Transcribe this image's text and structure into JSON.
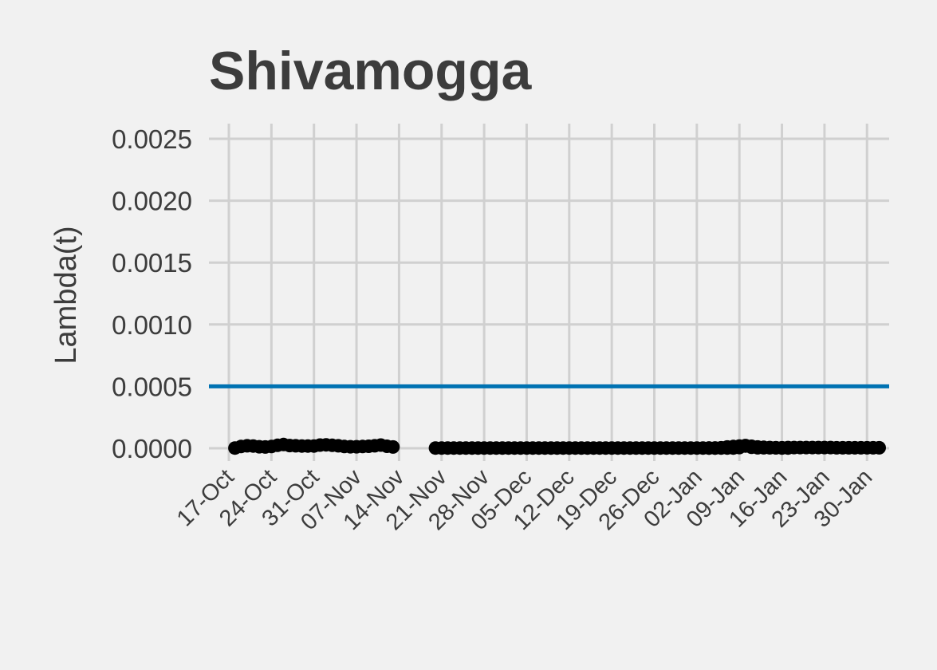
{
  "chart_data": {
    "type": "line",
    "title": "Shivamogga",
    "xlabel": "",
    "ylabel": "Lambda(t)",
    "grid": true,
    "x_ticks": [
      "17-Oct",
      "24-Oct",
      "31-Oct",
      "07-Nov",
      "14-Nov",
      "21-Nov",
      "28-Nov",
      "05-Dec",
      "12-Dec",
      "19-Dec",
      "26-Dec",
      "02-Jan",
      "09-Jan",
      "16-Jan",
      "23-Jan",
      "30-Jan"
    ],
    "y_ticks": [
      "0.0000",
      "0.0005",
      "0.0010",
      "0.0015",
      "0.0020",
      "0.0025"
    ],
    "ylim": [
      -3e-05,
      0.00026
    ],
    "reference_line": {
      "y": 0.0005,
      "color": "#0072b2"
    },
    "series": [
      {
        "color": "#000000",
        "segments": [
          {
            "start": "2020-10-18",
            "values": [
              2e-06,
              1.4e-05,
              2e-05,
              1.8e-05,
              1.2e-05,
              1e-05,
              1.4e-05,
              2.4e-05,
              3e-05,
              2.2e-05,
              2e-05,
              1.8e-05,
              1.8e-05,
              1.8e-05,
              2.6e-05,
              2.8e-05,
              2.4e-05,
              2e-05,
              1.4e-05,
              1.2e-05,
              1.2e-05,
              1.4e-05,
              1.6e-05,
              2e-05,
              2.6e-05,
              1.6e-05,
              1e-05
            ]
          },
          {
            "start": "2020-11-20",
            "values": [
              2e-06,
              2e-06,
              2e-06,
              2e-06,
              2e-06,
              2e-06,
              2e-06,
              2e-06,
              2e-06,
              2e-06,
              2e-06,
              2e-06,
              2e-06,
              2e-06,
              2e-06,
              2e-06,
              2e-06,
              2e-06,
              2e-06,
              2e-06,
              2e-06,
              2e-06,
              2e-06,
              2e-06,
              2e-06,
              2e-06,
              2e-06,
              2e-06,
              2e-06,
              2e-06,
              2e-06,
              2e-06,
              2e-06,
              2e-06,
              2e-06,
              2e-06,
              2e-06,
              2e-06,
              2e-06,
              2e-06,
              2e-06,
              2e-06,
              2e-06,
              2e-06,
              2e-06,
              2e-06,
              2e-06,
              4e-06,
              1e-05,
              1.4e-05,
              1.8e-05,
              1.8e-05,
              1.6e-05,
              1e-05,
              8e-06,
              6e-06,
              4e-06,
              2e-06,
              2e-06
            ]
          },
          {
            "start": "2021-01-04",
            "values": [
              2e-06,
              2e-06,
              2e-06,
              2e-06,
              2e-06,
              6e-06,
              2.2e-05,
              8e-06,
              4e-06,
              4e-06,
              4e-06,
              4e-06,
              4e-06,
              6e-06,
              6e-06,
              6e-06,
              6e-06,
              6e-06,
              6e-06,
              6e-06,
              6e-06,
              4e-06,
              4e-06,
              4e-06,
              4e-06,
              4e-06,
              4e-06,
              4e-06,
              4e-06
            ]
          }
        ]
      }
    ]
  }
}
